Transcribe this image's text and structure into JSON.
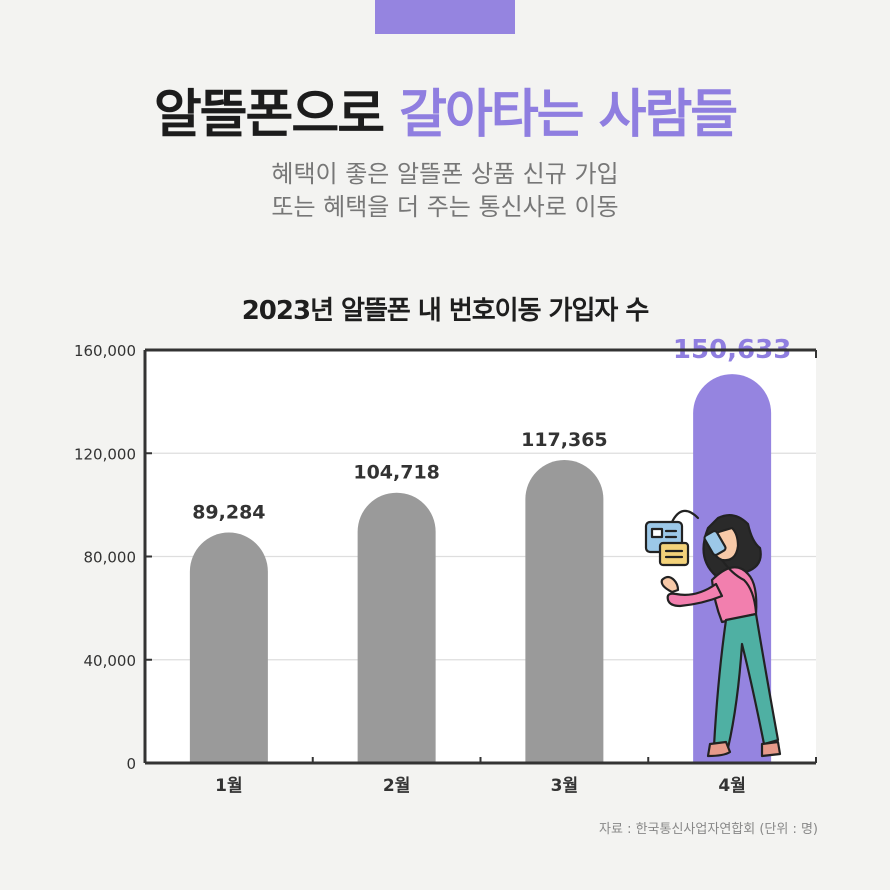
{
  "banner": {
    "headline_dark": "알뜰폰으로",
    "headline_accent": "갈아타는 사람들",
    "subtitle_line1": "혜택이 좋은 알뜰폰 상품 신규 가입",
    "subtitle_line2": "또는 혜택을 더 주는 통신사로 이동"
  },
  "chart_data": {
    "type": "bar",
    "title": "2023년 알뜰폰 내 번호이동 가입자 수",
    "categories": [
      "1월",
      "2월",
      "3월",
      "4월"
    ],
    "values": [
      89284,
      104718,
      117365,
      150633
    ],
    "value_labels": [
      "89,284",
      "104,718",
      "117,365",
      "150,633"
    ],
    "ylim": [
      0,
      160000
    ],
    "yticks": [
      0,
      40000,
      80000,
      120000,
      160000
    ],
    "ytick_labels": [
      "0",
      "40,000",
      "80,000",
      "120,000",
      "160,000"
    ],
    "grid": true,
    "highlight_index": 3
  },
  "colors": {
    "accent": "#8f7ee0",
    "bar": "#9a9a9a",
    "highlight_bar": "#9584e0",
    "text_dark": "#333333"
  },
  "source": "자료 : 한국통신사업자연합회 (단위 : 명)",
  "illustration": {
    "icon": "woman-on-phone-icon"
  }
}
